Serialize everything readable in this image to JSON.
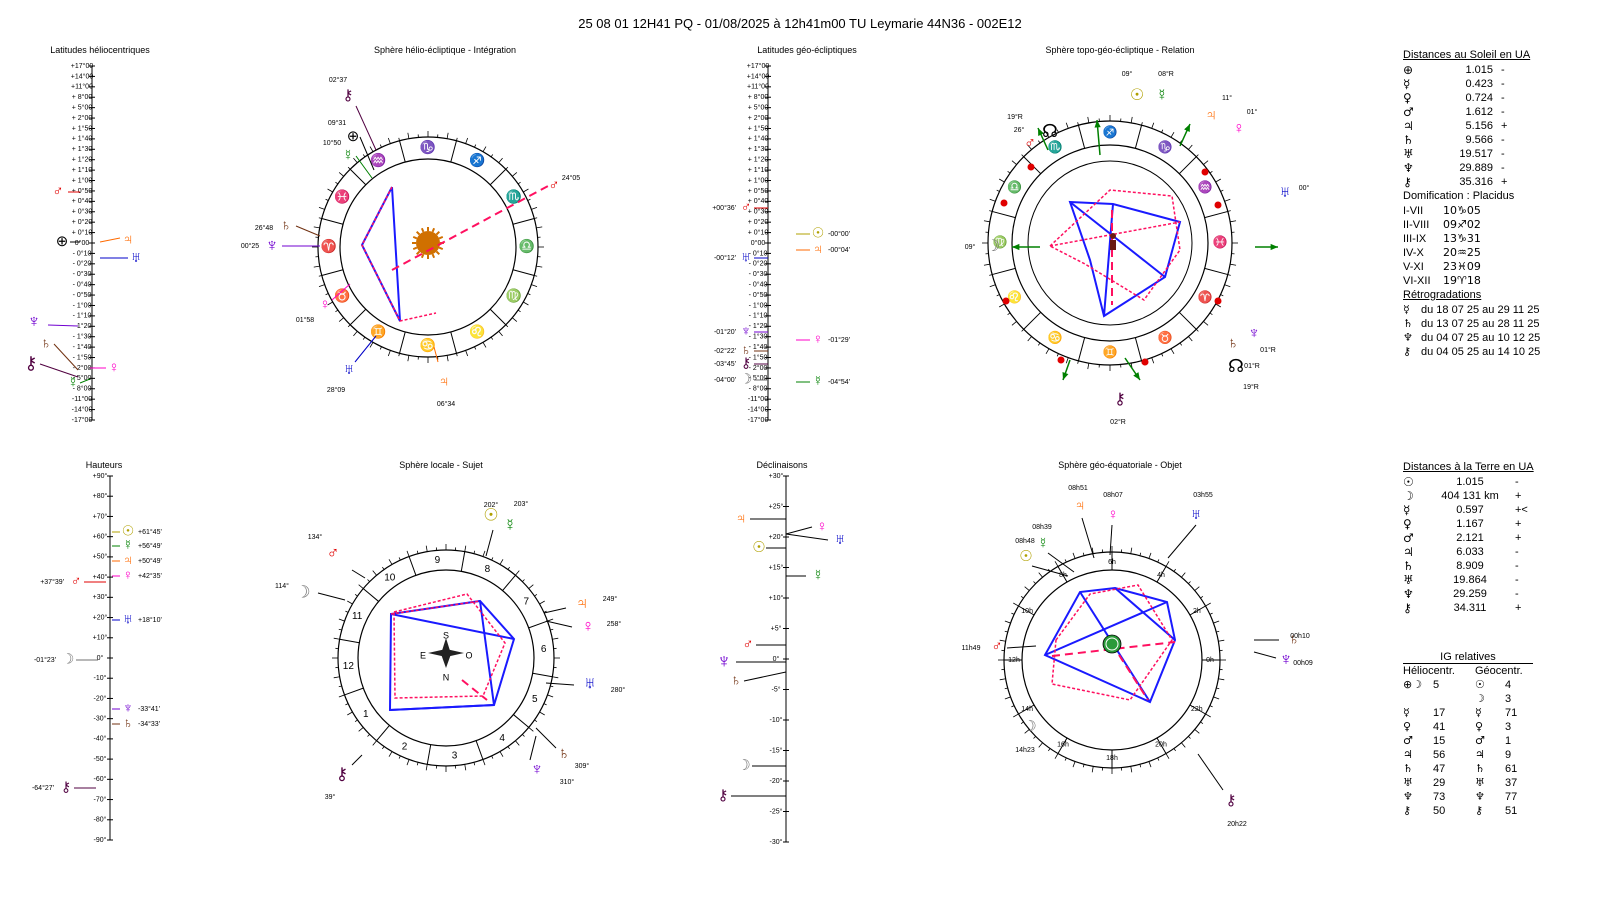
{
  "header": "25 08 01 12H41 PQ   -  01/08/2025 à 12h41m00 TU  Leymarie  44N36 - 002E12",
  "panel_titles": {
    "lat_helio": "Latitudes héliocentriques",
    "sphere_helio": "Sphère hélio-écliptique - Intégration",
    "lat_geo": "Latitudes géo-écliptiques",
    "sphere_topo": "Sphère topo-géo-écliptique - Relation",
    "hauteurs": "Hauteurs",
    "sphere_locale": "Sphère locale - Sujet",
    "declinaisons": "Déclinaisons",
    "sphere_geoeq": "Sphère géo-équatoriale - Objet"
  },
  "scales": {
    "latitude": [
      "+17°00",
      "+14°00",
      "+11°00",
      "+ 8°00",
      "+ 5°00",
      "+ 2°00",
      "+ 1°50",
      "+ 1°40",
      "+ 1°30",
      "+ 1°20",
      "+ 1°10",
      "+ 1°00",
      "+ 0°50",
      "+ 0°40",
      "+ 0°30",
      "+ 0°20",
      "+ 0°10",
      "0°00",
      "- 0°10",
      "- 0°20",
      "- 0°30",
      "- 0°40",
      "- 0°50",
      "- 1°00",
      "- 1°10",
      "- 1°20",
      "- 1°30",
      "- 1°40",
      "- 1°50",
      "- 2°00",
      "- 5°00",
      "- 8°00",
      "-11°00",
      "-14°00",
      "-17°00"
    ],
    "hauteurs": [
      "+90°",
      "+80°",
      "+70°",
      "+60°",
      "+50°",
      "+40°",
      "+30°",
      "+20°",
      "+10°",
      "0°",
      "-10°",
      "-20°",
      "-30°",
      "-40°",
      "-50°",
      "-60°",
      "-70°",
      "-80°",
      "-90°"
    ],
    "declinaisons": [
      "+30°",
      "+25°",
      "+20°",
      "+15°",
      "+10°",
      "+5°",
      "0°",
      "-5°",
      "-10°",
      "-15°",
      "-20°",
      "-25°",
      "-30°"
    ]
  },
  "helio_lat_labels": [
    {
      "glyph": "♂",
      "color": "#e00000",
      "text": ""
    },
    {
      "glyph": "⊕",
      "color": "#000000",
      "text": ""
    },
    {
      "glyph": "♃",
      "color": "#ff6a00",
      "text": ""
    },
    {
      "glyph": "♅",
      "color": "#0000c8",
      "text": ""
    },
    {
      "glyph": "♆",
      "color": "#7000d0",
      "text": ""
    },
    {
      "glyph": "♄",
      "color": "#703010",
      "text": ""
    },
    {
      "glyph": "⚷",
      "color": "#500040",
      "text": ""
    },
    {
      "glyph": "☿",
      "color": "#008000",
      "text": ""
    },
    {
      "glyph": "♀",
      "color": "#ff00c8",
      "text": ""
    }
  ],
  "geo_lat_labels": [
    {
      "glyph": "♂",
      "color": "#e00000",
      "text": "+00°36'"
    },
    {
      "glyph": "☉",
      "color": "#b0a000",
      "text": "-00°00'"
    },
    {
      "glyph": "♃",
      "color": "#ff6a00",
      "text": "-00°04'"
    },
    {
      "glyph": "♅",
      "color": "#0000c8",
      "text": "-00°12'"
    },
    {
      "glyph": "♆",
      "color": "#7000d0",
      "text": "-01°20'"
    },
    {
      "glyph": "♀",
      "color": "#ff00c8",
      "text": "-01°29'"
    },
    {
      "glyph": "♄",
      "color": "#703010",
      "text": "-02°22'"
    },
    {
      "glyph": "⚷",
      "color": "#500040",
      "text": "-03°45'"
    },
    {
      "glyph": "☽",
      "color": "#707070",
      "text": "-04°00'"
    },
    {
      "glyph": "☿",
      "color": "#008000",
      "text": "-04°54'"
    }
  ],
  "hauteurs_labels": [
    {
      "glyph": "☉",
      "color": "#b0a000",
      "text": "+61°45'"
    },
    {
      "glyph": "☿",
      "color": "#008000",
      "text": "+56°49'"
    },
    {
      "glyph": "♃",
      "color": "#ff6a00",
      "text": "+50°49'"
    },
    {
      "glyph": "♀",
      "color": "#ff00c8",
      "text": "+42°35'"
    },
    {
      "glyph": "♂",
      "color": "#e00000",
      "text": "+37°39'"
    },
    {
      "glyph": "♅",
      "color": "#0000c8",
      "text": "+18°10'"
    },
    {
      "glyph": "☽",
      "color": "#707070",
      "text": "-01°23'"
    },
    {
      "glyph": "♆",
      "color": "#7000d0",
      "text": "-33°41'"
    },
    {
      "glyph": "♄",
      "color": "#703010",
      "text": "-34°33'"
    },
    {
      "glyph": "⚷",
      "color": "#500040",
      "text": "-64°27'"
    }
  ],
  "helio_sphere": {
    "zodiac": [
      "♑",
      "♐",
      "♏",
      "♎",
      "♍",
      "♌",
      "♋",
      "♊",
      "♉",
      "♈",
      "♓",
      "♒"
    ],
    "planets": [
      {
        "glyph": "⚷",
        "color": "#500040",
        "text": "02°37"
      },
      {
        "glyph": "⊕",
        "color": "#000000",
        "text": "09°31"
      },
      {
        "glyph": "☿",
        "color": "#008000",
        "text": "10°50"
      },
      {
        "glyph": "♂",
        "color": "#e00000",
        "text": "24°05"
      },
      {
        "glyph": "♄",
        "color": "#703010",
        "text": "26°48"
      },
      {
        "glyph": "♆",
        "color": "#7000d0",
        "text": "00°25"
      },
      {
        "glyph": "♀",
        "color": "#ff00c8",
        "text": "01°58"
      },
      {
        "glyph": "♅",
        "color": "#0000c8",
        "text": "28°09"
      },
      {
        "glyph": "♃",
        "color": "#ff6a00",
        "text": "06°34"
      }
    ]
  },
  "topo_sphere": {
    "zodiac": [
      "♍",
      "♎",
      "♏",
      "♐",
      "♑",
      "♒",
      "♓",
      "♈",
      "♉",
      "♊",
      "♋",
      "♌"
    ],
    "planets": [
      {
        "glyph": "☉",
        "color": "#b0a000",
        "text": "09°"
      },
      {
        "glyph": "☿",
        "color": "#008000",
        "text": "08°R"
      },
      {
        "glyph": "♃",
        "color": "#ff6a00",
        "text": "11°"
      },
      {
        "glyph": "♀",
        "color": "#ff00c8",
        "text": "01°"
      },
      {
        "glyph": "☊",
        "color": "#000000",
        "text": "19°R"
      },
      {
        "glyph": "♂",
        "color": "#e00000",
        "text": "26°"
      },
      {
        "glyph": "♅",
        "color": "#0000c8",
        "text": "00°"
      },
      {
        "glyph": "☽",
        "color": "#707070",
        "text": "09°"
      },
      {
        "glyph": "♆",
        "color": "#7000d0",
        "text": "01°R"
      },
      {
        "glyph": "♄",
        "color": "#703010",
        "text": "01°R"
      },
      {
        "glyph": "☊",
        "color": "#000000",
        "text": "19°R"
      },
      {
        "glyph": "⚷",
        "color": "#500040",
        "text": "02°R"
      }
    ]
  },
  "locale_sphere": {
    "houses": [
      "9",
      "8",
      "7",
      "6",
      "5",
      "4",
      "3",
      "2",
      "1",
      "12",
      "11",
      "10"
    ],
    "compass": [
      "S",
      "E",
      "O",
      "N"
    ],
    "planets": [
      {
        "glyph": "☉",
        "color": "#b0a000",
        "text": "202°"
      },
      {
        "glyph": "☿",
        "color": "#008000",
        "text": "203°"
      },
      {
        "glyph": "♂",
        "color": "#e00000",
        "text": "134°"
      },
      {
        "glyph": "☽",
        "color": "#707070",
        "text": "114°"
      },
      {
        "glyph": "♃",
        "color": "#ff6a00",
        "text": "249°"
      },
      {
        "glyph": "♀",
        "color": "#ff00c8",
        "text": "258°"
      },
      {
        "glyph": "♅",
        "color": "#0000c8",
        "text": "280°"
      },
      {
        "glyph": "♄",
        "color": "#703010",
        "text": "309°"
      },
      {
        "glyph": "♆",
        "color": "#7000d0",
        "text": "310°"
      },
      {
        "glyph": "⚷",
        "color": "#500040",
        "text": "39°"
      }
    ]
  },
  "declinaisons_labels": [
    {
      "glyph": "♃",
      "color": "#ff6a00",
      "text": ""
    },
    {
      "glyph": "♀",
      "color": "#ff00c8",
      "text": ""
    },
    {
      "glyph": "♅",
      "color": "#0000c8",
      "text": ""
    },
    {
      "glyph": "☉",
      "color": "#b0a000",
      "text": ""
    },
    {
      "glyph": "☿",
      "color": "#008000",
      "text": ""
    },
    {
      "glyph": "♂",
      "color": "#e00000",
      "text": ""
    },
    {
      "glyph": "♆",
      "color": "#7000d0",
      "text": ""
    },
    {
      "glyph": "♄",
      "color": "#703010",
      "text": ""
    },
    {
      "glyph": "☽",
      "color": "#707070",
      "text": ""
    },
    {
      "glyph": "⚷",
      "color": "#500040",
      "text": ""
    }
  ],
  "geoeq_sphere": {
    "hours": [
      "6h",
      "4h",
      "2h",
      "0h",
      "22h",
      "20h",
      "18h",
      "16h",
      "14h",
      "12h",
      "10h",
      "8h"
    ],
    "planets": [
      {
        "glyph": "♃",
        "color": "#ff6a00",
        "text": "08h51"
      },
      {
        "glyph": "♀",
        "color": "#ff00c8",
        "text": "08h07"
      },
      {
        "glyph": "♅",
        "color": "#0000c8",
        "text": "03h55"
      },
      {
        "glyph": "☿",
        "color": "#008000",
        "text": "08h39"
      },
      {
        "glyph": "☉",
        "color": "#b0a000",
        "text": "08h48"
      },
      {
        "glyph": "♂",
        "color": "#e00000",
        "text": "11h49"
      },
      {
        "glyph": "♄",
        "color": "#703010",
        "text": "00h10"
      },
      {
        "glyph": "♆",
        "color": "#7000d0",
        "text": "00h09"
      },
      {
        "glyph": "☽",
        "color": "#707070",
        "text": "14h23"
      },
      {
        "glyph": "⚷",
        "color": "#500040",
        "text": "20h22"
      }
    ]
  },
  "sun_distances": {
    "title": "Distances au Soleil en UA",
    "rows": [
      {
        "glyph": "⊕",
        "color": "#000000",
        "value": "1.015",
        "sign": "-"
      },
      {
        "glyph": "☿",
        "color": "#000000",
        "value": "0.423",
        "sign": "-"
      },
      {
        "glyph": "♀",
        "color": "#000000",
        "value": "0.724",
        "sign": "-"
      },
      {
        "glyph": "♂",
        "color": "#000000",
        "value": "1.612",
        "sign": "-"
      },
      {
        "glyph": "♃",
        "color": "#000000",
        "value": "5.156",
        "sign": "+"
      },
      {
        "glyph": "♄",
        "color": "#000000",
        "value": "9.566",
        "sign": "-"
      },
      {
        "glyph": "♅",
        "color": "#000000",
        "value": "19.517",
        "sign": "-"
      },
      {
        "glyph": "♆",
        "color": "#000000",
        "value": "29.889",
        "sign": "-"
      },
      {
        "glyph": "⚷",
        "color": "#000000",
        "value": "35.316",
        "sign": "+"
      }
    ]
  },
  "domification": {
    "title": "Domification : Placidus",
    "rows": [
      {
        "label": "I-VII",
        "value": "10♑05"
      },
      {
        "label": "II-VIII",
        "value": "09♐02"
      },
      {
        "label": "III-IX",
        "value": "13♑31"
      },
      {
        "label": "IV-X",
        "value": "20♒25"
      },
      {
        "label": "V-XI",
        "value": "23♓09"
      },
      {
        "label": "VI-XII",
        "value": "19♈18"
      }
    ]
  },
  "retrogradations": {
    "title": "Rétrogradations",
    "rows": [
      {
        "glyph": "☿",
        "text": "du 18 07 25 au 29 11 25"
      },
      {
        "glyph": "♄",
        "text": "du 13 07 25 au 28 11 25"
      },
      {
        "glyph": "♆",
        "text": "du 04 07 25 au 10 12 25"
      },
      {
        "glyph": "⚷",
        "text": "du 04 05 25 au 14 10 25"
      }
    ]
  },
  "earth_distances": {
    "title": "Distances à la Terre en UA",
    "rows": [
      {
        "glyph": "☉",
        "value": "1.015",
        "sign": "-"
      },
      {
        "glyph": "☽",
        "value": "404 131 km",
        "sign": "+"
      },
      {
        "glyph": "☿",
        "value": "0.597",
        "sign": "+<"
      },
      {
        "glyph": "♀",
        "value": "1.167",
        "sign": "+"
      },
      {
        "glyph": "♂",
        "value": "2.121",
        "sign": "+"
      },
      {
        "glyph": "♃",
        "value": "6.033",
        "sign": "-"
      },
      {
        "glyph": "♄",
        "value": "8.909",
        "sign": "-"
      },
      {
        "glyph": "♅",
        "value": "19.864",
        "sign": "-"
      },
      {
        "glyph": "♆",
        "value": "29.259",
        "sign": "-"
      },
      {
        "glyph": "⚷",
        "value": "34.311",
        "sign": "+"
      }
    ]
  },
  "ig": {
    "title": "IG relatives",
    "col1": "Héliocentr.",
    "col2": "Géocentr.",
    "rows": [
      {
        "g1": "⊕☽",
        "v1": "5",
        "g2": "☉",
        "v2": "4"
      },
      {
        "g1": "",
        "v1": "",
        "g2": "☽",
        "v2": "3"
      },
      {
        "g1": "☿",
        "v1": "17",
        "g2": "☿",
        "v2": "71"
      },
      {
        "g1": "♀",
        "v1": "41",
        "g2": "♀",
        "v2": "3"
      },
      {
        "g1": "♂",
        "v1": "15",
        "g2": "♂",
        "v2": "1"
      },
      {
        "g1": "♃",
        "v1": "56",
        "g2": "♃",
        "v2": "9"
      },
      {
        "g1": "♄",
        "v1": "47",
        "g2": "♄",
        "v2": "61"
      },
      {
        "g1": "♅",
        "v1": "29",
        "g2": "♅",
        "v2": "37"
      },
      {
        "g1": "♆",
        "v1": "73",
        "g2": "♆",
        "v2": "77"
      },
      {
        "g1": "⚷",
        "v1": "50",
        "g2": "⚷",
        "v2": "51"
      }
    ]
  }
}
